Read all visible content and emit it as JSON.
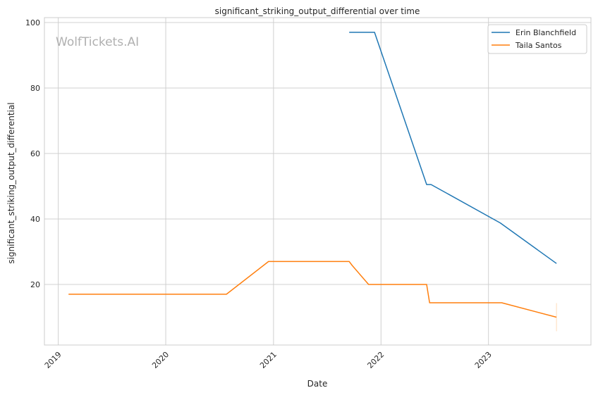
{
  "chart_data": {
    "type": "line",
    "title": "significant_striking_output_differential over time",
    "xlabel": "Date",
    "ylabel": "significant_striking_output_differential",
    "watermark": "WolfTickets.AI",
    "x_ticks": [
      "2019",
      "2020",
      "2021",
      "2022",
      "2023"
    ],
    "y_ticks": [
      20,
      40,
      60,
      80,
      100
    ],
    "xlim": [
      "2018-11-15",
      "2023-12-15"
    ],
    "ylim": [
      1.5,
      101.5
    ],
    "grid": true,
    "legend_placement": "top-right",
    "series": [
      {
        "name": "Erin Blanchfield",
        "color": "#1f77b4",
        "points": [
          {
            "x": "2021-09-15",
            "y": 97
          },
          {
            "x": "2021-12-10",
            "y": 97
          },
          {
            "x": "2022-06-05",
            "y": 50.5
          },
          {
            "x": "2022-06-20",
            "y": 50.5
          },
          {
            "x": "2023-02-10",
            "y": 38.8
          },
          {
            "x": "2023-08-20",
            "y": 26.4
          }
        ]
      },
      {
        "name": "Taila Santos",
        "color": "#ff7f0e",
        "points": [
          {
            "x": "2019-02-05",
            "y": 17
          },
          {
            "x": "2020-07-25",
            "y": 17
          },
          {
            "x": "2020-12-15",
            "y": 27
          },
          {
            "x": "2021-09-15",
            "y": 27
          },
          {
            "x": "2021-09-25",
            "y": 25.8
          },
          {
            "x": "2021-11-20",
            "y": 20
          },
          {
            "x": "2022-06-05",
            "y": 20
          },
          {
            "x": "2022-06-15",
            "y": 14.4
          },
          {
            "x": "2023-02-15",
            "y": 14.4
          },
          {
            "x": "2023-08-20",
            "y": 10
          }
        ]
      }
    ]
  }
}
